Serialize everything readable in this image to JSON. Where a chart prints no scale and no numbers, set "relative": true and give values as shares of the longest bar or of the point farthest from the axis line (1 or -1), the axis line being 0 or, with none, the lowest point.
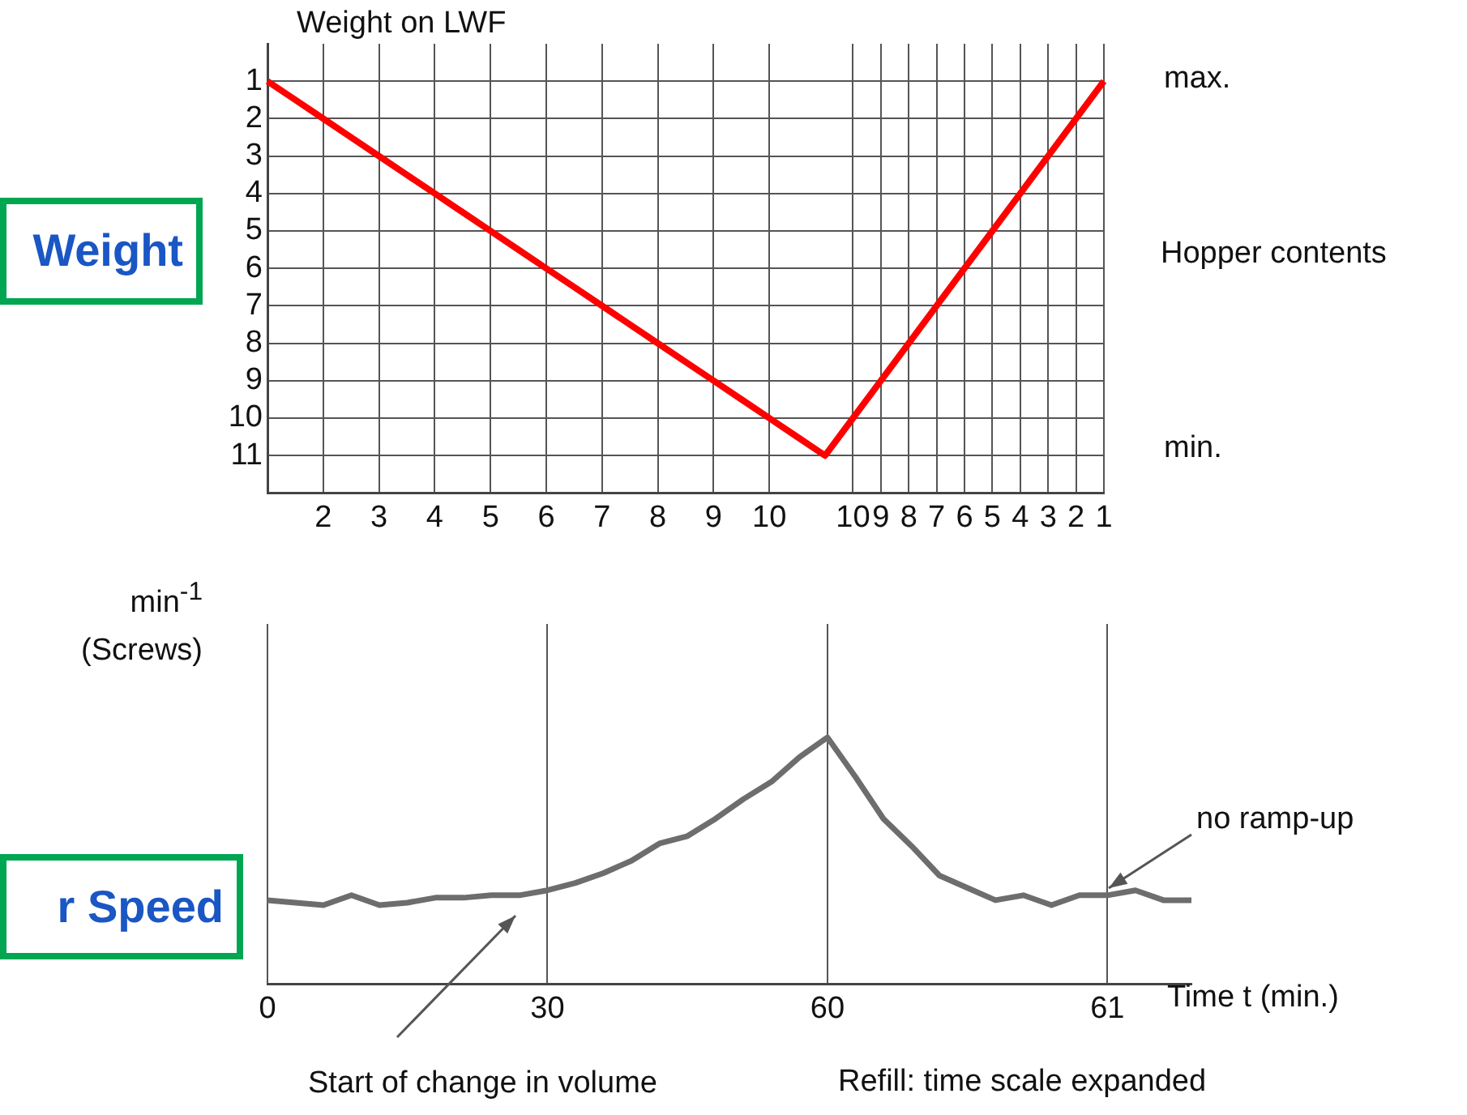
{
  "chart_data": [
    {
      "type": "line",
      "ylabel": "Weight on LWF",
      "y2label": "Hopper contents",
      "categories": [
        null,
        null,
        "2",
        null,
        "3",
        null,
        "4",
        null,
        "5",
        null,
        "6",
        null,
        "7",
        null,
        "8",
        null,
        "9",
        null,
        "10",
        null,
        null,
        "10",
        "9",
        "8",
        "7",
        "6",
        "5",
        "4",
        "3",
        "2",
        "1"
      ],
      "series": [
        {
          "color": "#ff0000",
          "values": [
            1,
            1.5,
            2,
            2.5,
            3,
            3.5,
            4,
            4.5,
            5,
            5.5,
            6,
            6.5,
            7,
            7.5,
            8,
            8.5,
            9,
            9.5,
            10,
            10.5,
            11,
            10,
            9,
            8,
            7,
            6,
            5,
            4,
            3,
            2,
            1
          ]
        }
      ],
      "ylim": [
        12,
        0
      ],
      "yticks": [
        1,
        2,
        3,
        4,
        5,
        6,
        7,
        8,
        9,
        10,
        11
      ],
      "grid": true,
      "annotations": [
        "max.",
        "min.",
        "Weight"
      ]
    },
    {
      "type": "line",
      "ylabel": "min$^{-1}$ (Screws)",
      "xlabel": "Time t (min.)",
      "relative": true,
      "categories": [
        "0",
        null,
        null,
        null,
        null,
        null,
        null,
        null,
        null,
        null,
        "30",
        null,
        null,
        null,
        null,
        null,
        null,
        null,
        null,
        null,
        "60",
        null,
        null,
        null,
        null,
        null,
        null,
        null,
        null,
        null,
        "61",
        null,
        null,
        null
      ],
      "series": [
        {
          "color": "#6d6d6d",
          "values": [
            0.34,
            0.33,
            0.32,
            0.36,
            0.32,
            0.33,
            0.35,
            0.35,
            0.36,
            0.36,
            0.38,
            0.41,
            0.45,
            0.5,
            0.57,
            0.6,
            0.67,
            0.75,
            0.82,
            0.92,
            1,
            0.84,
            0.67,
            0.56,
            0.44,
            0.39,
            0.34,
            0.36,
            0.32,
            0.36,
            0.36,
            0.38,
            0.34,
            0.34
          ]
        }
      ],
      "grid": "x",
      "annotations": [
        "Start of change in volume",
        "no ramp-up",
        "Refill: time scale expanded",
        "r Speed"
      ]
    }
  ]
}
